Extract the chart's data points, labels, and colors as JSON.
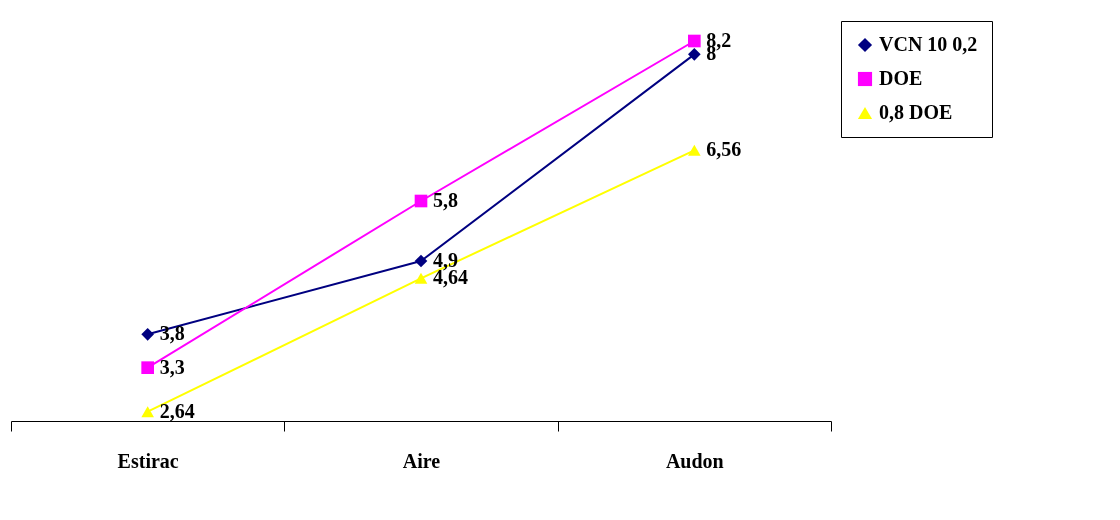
{
  "chart_data": {
    "type": "line",
    "categories": [
      "Estirac",
      "Aire",
      "Audon"
    ],
    "series": [
      {
        "name": "VCN 10 0,2",
        "color": "#000080",
        "marker": "diamond",
        "values": [
          3.8,
          4.9,
          8
        ],
        "value_labels": [
          "3,8",
          "4,9",
          "8"
        ]
      },
      {
        "name": "DOE",
        "color": "#ff00ff",
        "marker": "square",
        "values": [
          3.3,
          5.8,
          8.2
        ],
        "value_labels": [
          "3,3",
          "5,8",
          "8,2"
        ]
      },
      {
        "name": "0,8 DOE",
        "color": "#ffff00",
        "marker": "triangle",
        "values": [
          2.64,
          4.64,
          6.56
        ],
        "value_labels": [
          "2,64",
          "4,64",
          "6,56"
        ]
      }
    ],
    "legend": "right"
  }
}
